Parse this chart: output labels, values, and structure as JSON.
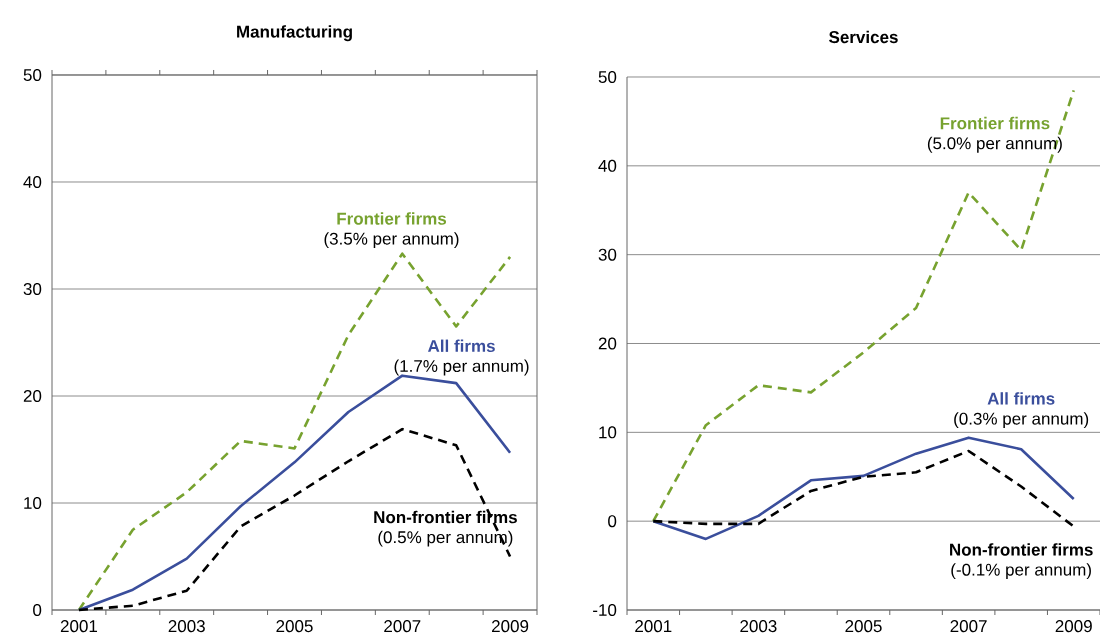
{
  "chart_data": [
    {
      "type": "line",
      "title": "Manufacturing",
      "categories": [
        "2001",
        null,
        "2003",
        null,
        "2005",
        null,
        "2007",
        null,
        "2009"
      ],
      "ylim": [
        0,
        50
      ],
      "yticks": [
        0,
        10,
        20,
        30,
        40,
        50
      ],
      "grid": "y",
      "annotations": [
        "(3.5% per annum)",
        "(1.7% per annum)",
        "(0.5% per annum)"
      ],
      "series": [
        {
          "name": "Frontier firms",
          "color": "#77a22f",
          "line_style": "dashed",
          "values": [
            0,
            7.5,
            11,
            15.8,
            15.1,
            25.7,
            33.3,
            26.5,
            33
          ]
        },
        {
          "name": "All firms",
          "color": "#3a4e9c",
          "line_style": "solid",
          "values": [
            0,
            1.9,
            4.8,
            9.7,
            13.8,
            18.5,
            21.9,
            21.2,
            14.7
          ]
        },
        {
          "name": "Non-frontier firms",
          "color": "#000000",
          "line_style": "dashed",
          "values": [
            0,
            0.4,
            1.8,
            7.8,
            10.7,
            13.9,
            16.9,
            15.4,
            5.0
          ]
        }
      ]
    },
    {
      "type": "line",
      "title": "Services",
      "categories": [
        "2001",
        null,
        "2003",
        null,
        "2005",
        null,
        "2007",
        null,
        "2009"
      ],
      "ylim": [
        -10,
        50
      ],
      "yticks": [
        -10,
        0,
        10,
        20,
        30,
        40,
        50
      ],
      "grid": "y",
      "annotations": [
        "(5.0% per annum)",
        "(0.3% per annum)",
        "(-0.1% per annum)"
      ],
      "series": [
        {
          "name": "Frontier firms",
          "color": "#77a22f",
          "line_style": "dashed",
          "values": [
            0,
            10.8,
            15.3,
            14.5,
            19,
            24,
            37,
            30.5,
            48.5
          ]
        },
        {
          "name": "All firms",
          "color": "#3a4e9c",
          "line_style": "solid",
          "values": [
            0,
            -2,
            0.6,
            4.6,
            5.1,
            7.6,
            9.4,
            8.1,
            2.5
          ]
        },
        {
          "name": "Non-frontier firms",
          "color": "#000000",
          "line_style": "dashed",
          "values": [
            0,
            -0.3,
            -0.3,
            3.4,
            5.0,
            5.5,
            7.9,
            3.9,
            -0.6
          ]
        }
      ]
    }
  ]
}
